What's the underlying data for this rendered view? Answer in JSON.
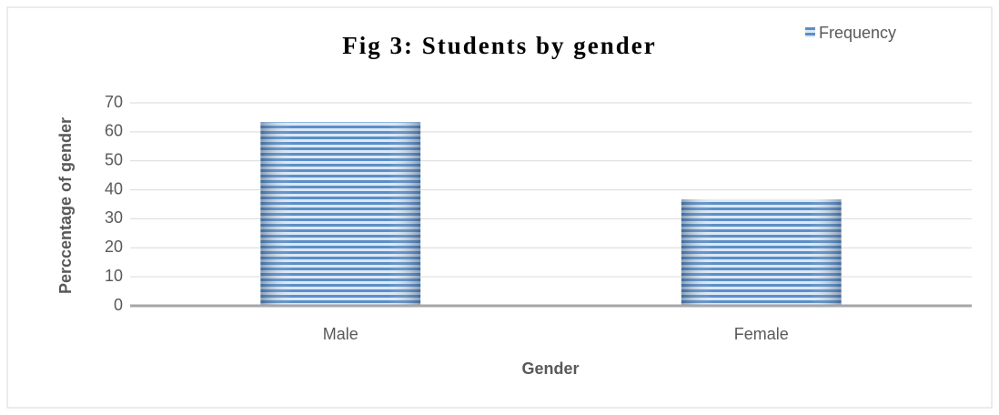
{
  "chart_data": {
    "type": "bar",
    "title": "Fig 3: Students by gender",
    "x_label": "Gender",
    "y_label": "Perccentage of gender",
    "categories": [
      "Male",
      "Female"
    ],
    "series": [
      {
        "name": "Frequency",
        "color": "#4f81bd",
        "values": [
          63.3,
          36.7
        ]
      }
    ],
    "ylim": [
      0,
      70
    ],
    "yticks": [
      0,
      10,
      20,
      30,
      40,
      50,
      60,
      70
    ],
    "grid": true,
    "legend": "top-right"
  }
}
